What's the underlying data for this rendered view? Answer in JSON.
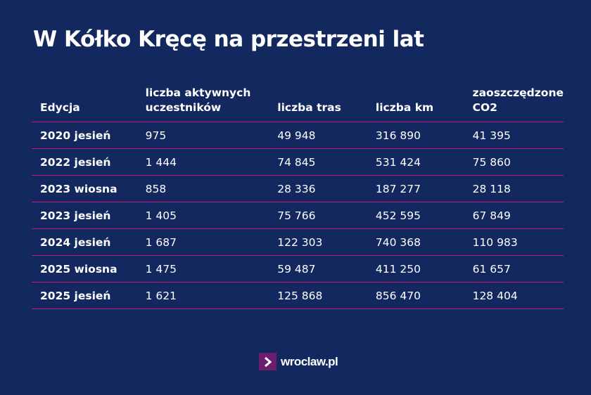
{
  "title": "W Kółko Kręcę na przestrzeni lat",
  "chart_data": {
    "type": "table",
    "columns": [
      "Edycja",
      "liczba aktywnych uczestników",
      "liczba tras",
      "liczba km",
      "zaoszczędzone CO2"
    ],
    "rows": [
      [
        "2020 jesień",
        "975",
        "49 948",
        "316 890",
        "41 395"
      ],
      [
        "2022 jesień",
        "1 444",
        "74 845",
        "531 424",
        "75 860"
      ],
      [
        "2023 wiosna",
        "858",
        "28 336",
        "187 277",
        "28 118"
      ],
      [
        "2023 jesień",
        "1 405",
        "75 766",
        "452 595",
        "67 849"
      ],
      [
        "2024 jesień",
        "1 687",
        "122 303",
        "740 368",
        "110 983"
      ],
      [
        "2025 wiosna",
        "1 475",
        "59 487",
        "411 250",
        "61 657"
      ],
      [
        "2025 jesień",
        "1 621",
        "125 868",
        "856 470",
        "128 404"
      ]
    ]
  },
  "logo": {
    "text": "wroclaw.pl",
    "icon": "chevron-right-icon"
  },
  "colors": {
    "background": "#12285e",
    "divider": "#c8157c",
    "logo_box": "#6b1d6e"
  }
}
